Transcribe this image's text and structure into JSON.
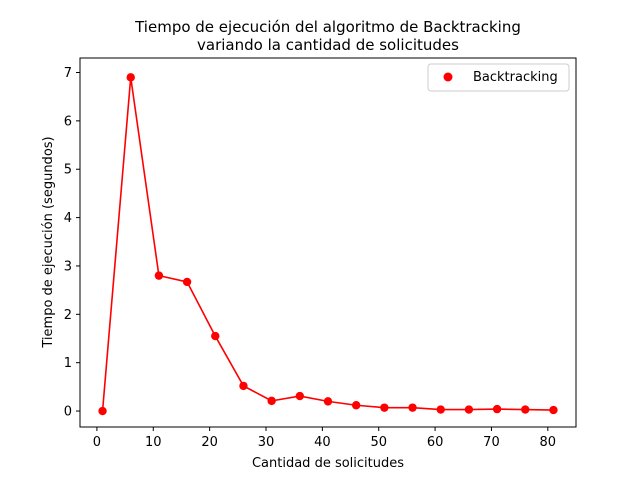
{
  "chart_data": {
    "type": "line",
    "title_lines": [
      "Tiempo de ejecución del algoritmo de Backtracking",
      "variando la cantidad de solicitudes"
    ],
    "xlabel": "Cantidad de solicitudes",
    "ylabel": "Tiempo de ejecución (segundos)",
    "xlim": [
      -3,
      85
    ],
    "ylim": [
      -0.33,
      7.3
    ],
    "xticks": [
      0,
      10,
      20,
      30,
      40,
      50,
      60,
      70,
      80
    ],
    "yticks": [
      0,
      1,
      2,
      3,
      4,
      5,
      6,
      7
    ],
    "grid": false,
    "legend_position": "top-right",
    "series": [
      {
        "name": "Backtracking",
        "color": "#ff0000",
        "x": [
          1,
          6,
          11,
          16,
          21,
          26,
          31,
          36,
          41,
          46,
          51,
          56,
          61,
          66,
          71,
          76,
          81
        ],
        "y": [
          0.0,
          6.9,
          2.8,
          2.67,
          1.55,
          0.52,
          0.21,
          0.31,
          0.2,
          0.12,
          0.07,
          0.07,
          0.03,
          0.03,
          0.04,
          0.03,
          0.02
        ]
      }
    ]
  }
}
